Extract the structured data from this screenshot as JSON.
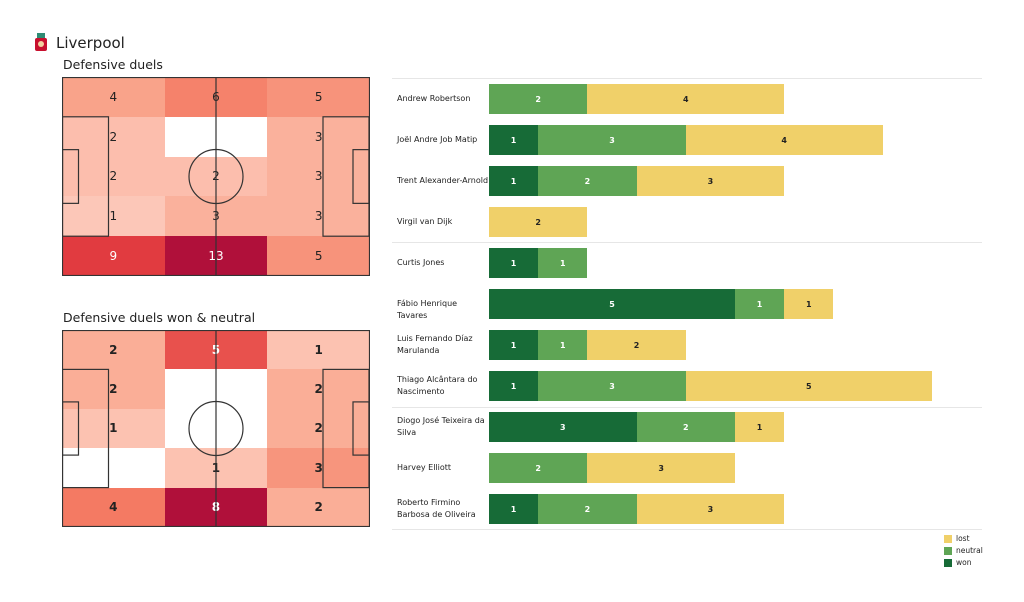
{
  "header": {
    "team": "Liverpool",
    "crest_icon": "liverpool-crest"
  },
  "chart_data": [
    {
      "type": "heatmap",
      "title": "Defensive duels",
      "grid": [
        [
          4,
          6,
          5
        ],
        [
          2,
          0,
          3
        ],
        [
          2,
          2,
          3
        ],
        [
          1,
          3,
          3
        ],
        [
          9,
          13,
          5
        ]
      ],
      "colormap": "Reds"
    },
    {
      "type": "heatmap",
      "title": "Defensive duels won & neutral",
      "grid": [
        [
          2,
          5,
          1
        ],
        [
          2,
          0,
          2
        ],
        [
          1,
          0,
          2
        ],
        [
          0,
          1,
          3
        ],
        [
          4,
          8,
          2
        ]
      ],
      "colormap": "Reds"
    },
    {
      "type": "bar",
      "orientation": "horizontal",
      "stacked": true,
      "categories": [
        "Andrew Robertson",
        "Joël Andre Job Matip",
        "Trent Alexander-Arnold",
        "Virgil van Dijk",
        "Curtis Jones",
        "Fábio Henrique Tavares",
        "Luis Fernando Díaz Marulanda",
        "Thiago Alcântara do Nascimento",
        "Diogo José Teixeira da Silva",
        "Harvey Elliott",
        "Roberto Firmino Barbosa de Oliveira"
      ],
      "series": [
        {
          "name": "won",
          "color": "#176b37",
          "values": [
            0,
            1,
            1,
            0,
            1,
            5,
            1,
            1,
            3,
            0,
            1
          ]
        },
        {
          "name": "neutral",
          "color": "#5fa555",
          "values": [
            2,
            3,
            2,
            0,
            1,
            1,
            1,
            3,
            2,
            2,
            2
          ]
        },
        {
          "name": "lost",
          "color": "#f0d069",
          "values": [
            4,
            4,
            3,
            2,
            0,
            1,
            2,
            5,
            1,
            3,
            3
          ]
        }
      ],
      "legend": "bottom-right"
    }
  ]
}
